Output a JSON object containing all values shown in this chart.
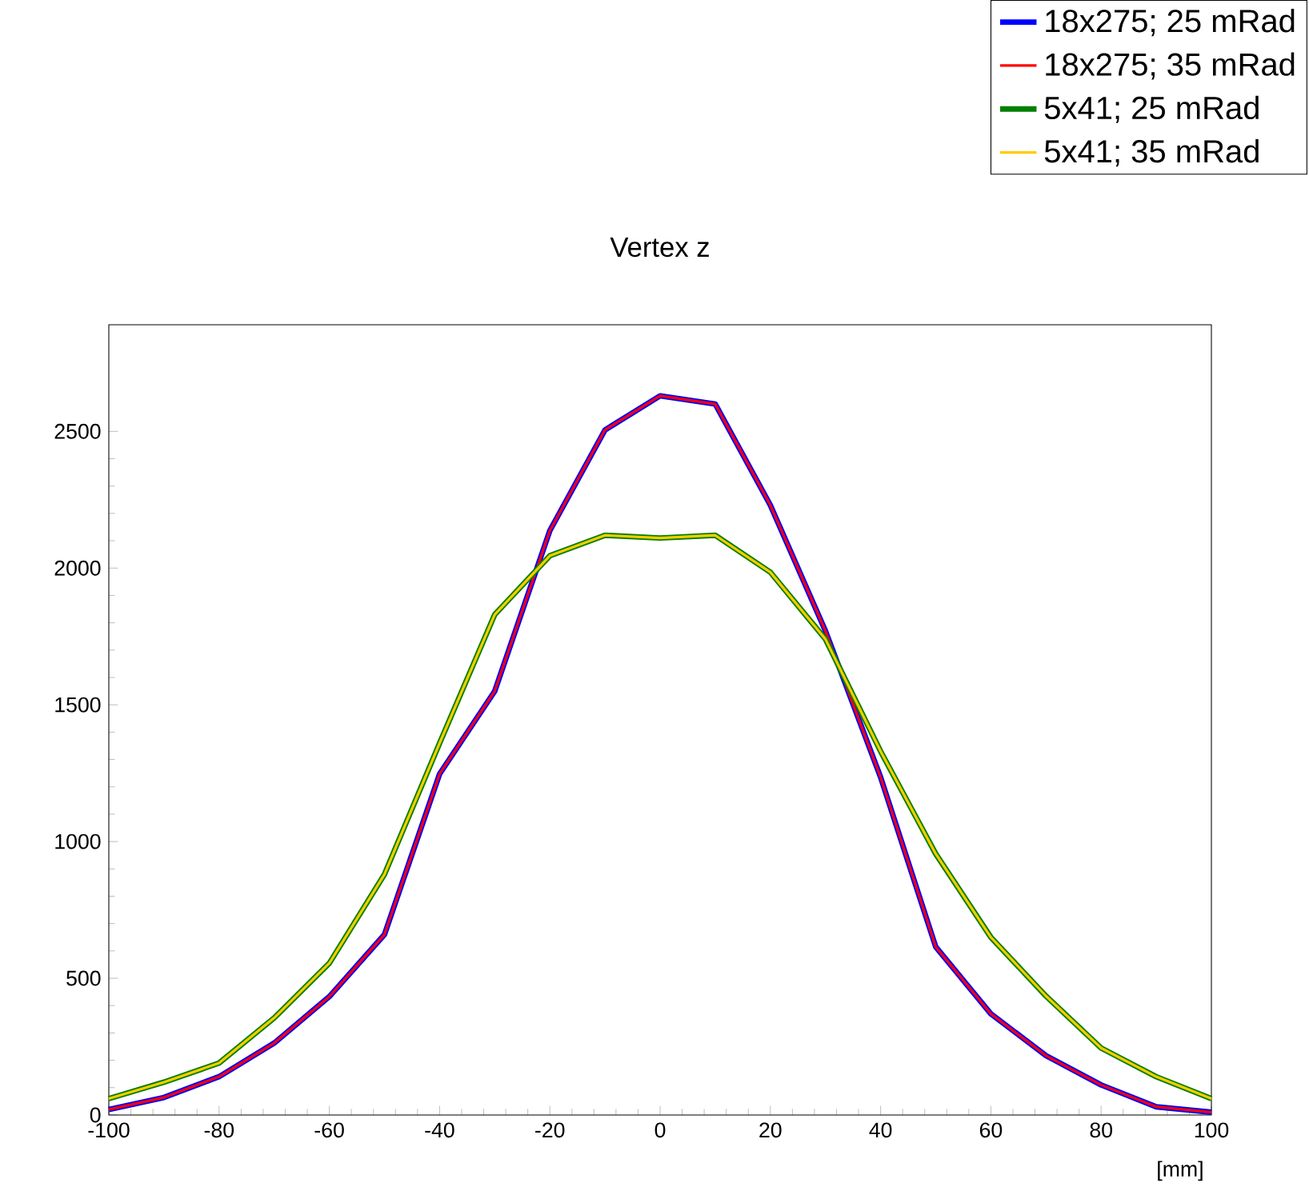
{
  "chart_data": {
    "type": "line",
    "title": "Vertex z",
    "xlabel": "[mm]",
    "x": [
      -100,
      -90,
      -80,
      -70,
      -60,
      -50,
      -40,
      -30,
      -20,
      -10,
      0,
      10,
      20,
      30,
      40,
      50,
      60,
      70,
      80,
      90,
      100
    ],
    "series": [
      {
        "name": "18x275; 25 mRad",
        "color": "#0000ff",
        "values": [
          20,
          64,
          140,
          263,
          433,
          660,
          1247,
          1550,
          2137,
          2505,
          2630,
          2600,
          2230,
          1770,
          1235,
          615,
          370,
          217,
          110,
          30,
          10
        ]
      },
      {
        "name": "18x275; 35 mRad",
        "color": "#ff0000",
        "values": [
          20,
          64,
          140,
          263,
          433,
          660,
          1247,
          1550,
          2137,
          2505,
          2630,
          2600,
          2230,
          1770,
          1235,
          615,
          370,
          217,
          110,
          30,
          10
        ]
      },
      {
        "name": "5x41; 25 mRad",
        "color": "#008000",
        "values": [
          60,
          120,
          190,
          355,
          555,
          880,
          1360,
          1830,
          2045,
          2120,
          2110,
          2120,
          1985,
          1740,
          1330,
          955,
          650,
          435,
          245,
          140,
          60
        ]
      },
      {
        "name": "5x41; 35 mRad",
        "color": "#ffcc00",
        "values": [
          60,
          120,
          190,
          355,
          555,
          880,
          1360,
          1830,
          2045,
          2120,
          2110,
          2120,
          1985,
          1740,
          1330,
          955,
          650,
          435,
          245,
          140,
          60
        ]
      }
    ],
    "xlim": [
      -100,
      100
    ],
    "ylim": [
      0,
      2890
    ],
    "xticks": [
      -100,
      -80,
      -60,
      -40,
      -20,
      0,
      20,
      40,
      60,
      80,
      100
    ],
    "yticks": [
      0,
      500,
      1000,
      1500,
      2000,
      2500
    ],
    "grid": false,
    "legend": "top right",
    "marker": "none",
    "line_style": "solid"
  }
}
